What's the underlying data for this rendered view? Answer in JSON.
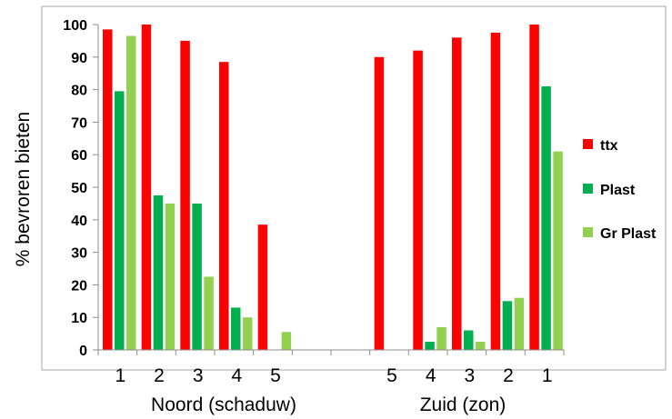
{
  "chart_data": {
    "type": "bar",
    "ylabel": "% bevroren  bieten",
    "ylim": [
      0,
      100
    ],
    "yticks": [
      "0",
      "10",
      "20",
      "30",
      "40",
      "50",
      "60",
      "70",
      "80",
      "90",
      "100"
    ],
    "categories": [
      "1",
      "2",
      "3",
      "4",
      "5",
      "",
      "",
      "5",
      "4",
      "3",
      "2",
      "1"
    ],
    "groups": [
      "Noord (schaduw)",
      "Zuid (zon)"
    ],
    "legend_position": "right",
    "grid": false,
    "series": [
      {
        "name": "ttx",
        "color": "#ff0000",
        "values": [
          98.5,
          100,
          95,
          88.5,
          38.5,
          null,
          null,
          90,
          92,
          96,
          97.5,
          100
        ]
      },
      {
        "name": "Plast",
        "color": "#00b050",
        "values": [
          79.5,
          47.5,
          45,
          13,
          0,
          null,
          null,
          0,
          2.5,
          6,
          15,
          81
        ]
      },
      {
        "name": "Gr Plast",
        "color": "#92d050",
        "values": [
          96.5,
          45,
          22.5,
          10,
          5.5,
          null,
          null,
          0,
          7,
          2.5,
          16,
          61
        ]
      }
    ]
  }
}
